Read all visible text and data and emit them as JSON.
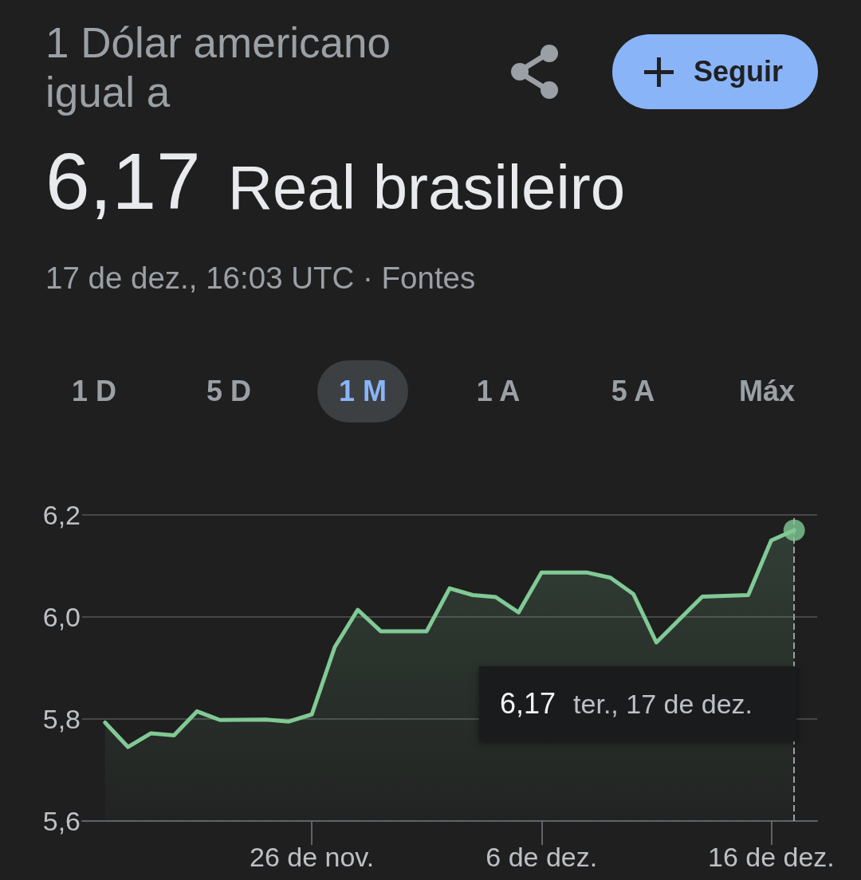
{
  "chart_data": {
    "type": "area",
    "title": "1 Dólar americano igual a",
    "subtitle": "6,17 Real brasileiro",
    "x": [
      "--11-17",
      "--11-18",
      "--11-19",
      "--11-20",
      "--11-21",
      "--11-22",
      "--11-24",
      "--11-25",
      "--11-26",
      "--11-27",
      "--11-28",
      "--11-29",
      "--12-01",
      "--12-02",
      "--12-03",
      "--12-04",
      "--12-05",
      "--12-06",
      "--12-08",
      "--12-09",
      "--12-10",
      "--12-11",
      "--12-13",
      "--12-15",
      "--12-16",
      "--12-17"
    ],
    "xlim": [
      "--11-16",
      "--12-18"
    ],
    "xticks": [
      {
        "value": "--11-26",
        "label": "26 de nov."
      },
      {
        "value": "--12-06",
        "label": "6 de dez."
      },
      {
        "value": "--12-16",
        "label": "16 de dez."
      }
    ],
    "ylim": [
      5.6,
      6.2
    ],
    "yticks": [
      {
        "value": 5.6,
        "label": "5,6"
      },
      {
        "value": 5.8,
        "label": "5,8"
      },
      {
        "value": 6.0,
        "label": "6,0"
      },
      {
        "value": 6.2,
        "label": "6,2"
      }
    ],
    "grid": "y",
    "marker": "none",
    "series": [
      {
        "color": "#81c995",
        "values": [
          5.793,
          5.745,
          5.772,
          5.768,
          5.815,
          5.798,
          5.799,
          5.795,
          5.809,
          5.941,
          6.014,
          5.972,
          5.972,
          6.056,
          6.043,
          6.039,
          6.009,
          6.087,
          6.087,
          6.077,
          6.045,
          5.95,
          6.04,
          6.043,
          6.15,
          6.17
        ]
      },
      {
        "type": "scatter",
        "marker": "circle",
        "color": "#81c995",
        "x": [
          "--12-17"
        ],
        "values": [
          6.17
        ]
      }
    ],
    "ref_lines": [
      {
        "axis": "x",
        "value": "--12-17",
        "color": "#9aa0a6",
        "line_style": "dashed"
      }
    ],
    "annotations": [
      "17 de dez., 16:03 UTC · Fontes",
      "Seguir",
      "1 D",
      "5 D",
      "1 M",
      "1 A",
      "5 A",
      "Máx",
      "6,17 ter., 17 de dez."
    ]
  }
}
